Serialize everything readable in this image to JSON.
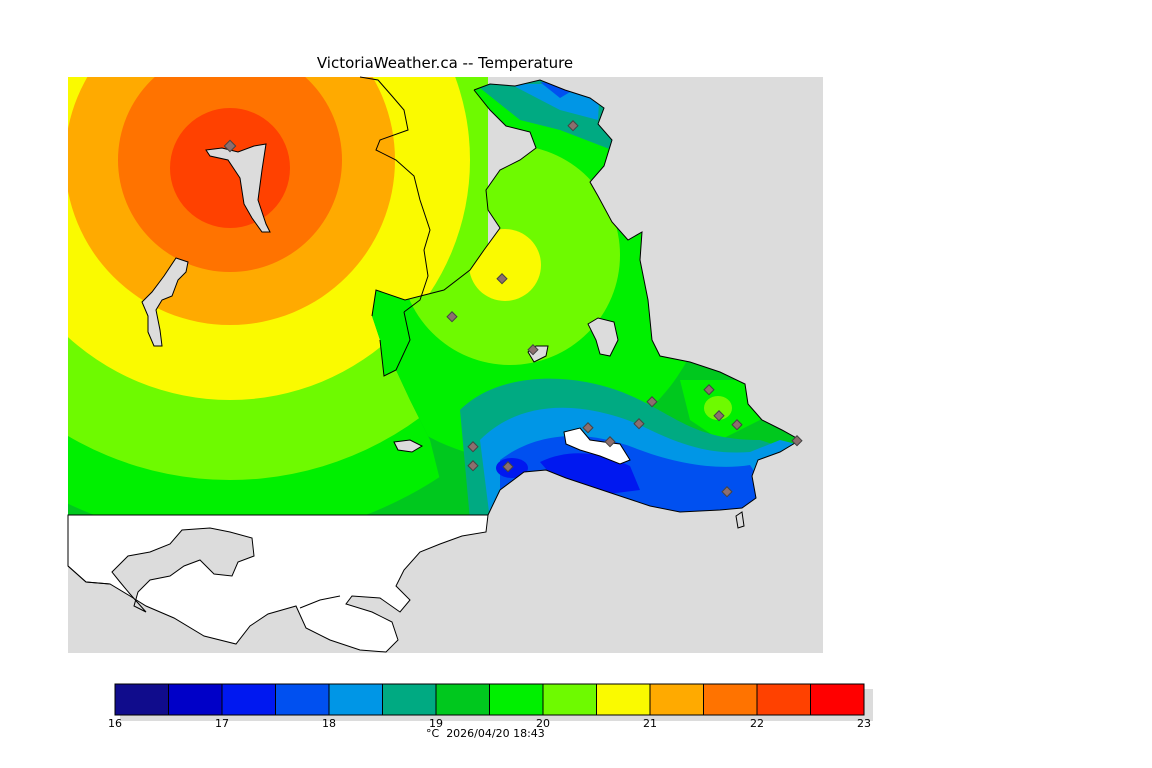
{
  "title": "VictoriaWeather.ca -- Temperature",
  "units": "°C",
  "timestamp": "2026/04/20 18:43",
  "colors": {
    "land_outside": "#dcdcdc",
    "water": "#ffffff",
    "coast": "#000000",
    "station": "#8c6e6e"
  },
  "legend": {
    "tick_labels": [
      "16",
      "17",
      "18",
      "19",
      "20",
      "21",
      "22",
      "23"
    ],
    "bins": [
      {
        "from": 16.0,
        "to": 16.5,
        "color": "#100c8c"
      },
      {
        "from": 16.5,
        "to": 17.0,
        "color": "#0000c8"
      },
      {
        "from": 17.0,
        "to": 17.5,
        "color": "#0018f0"
      },
      {
        "from": 17.5,
        "to": 18.0,
        "color": "#0050f0"
      },
      {
        "from": 18.0,
        "to": 18.5,
        "color": "#0096e6"
      },
      {
        "from": 18.5,
        "to": 19.0,
        "color": "#00aa82"
      },
      {
        "from": 19.0,
        "to": 19.5,
        "color": "#00c81e"
      },
      {
        "from": 19.5,
        "to": 20.0,
        "color": "#00f000"
      },
      {
        "from": 20.0,
        "to": 20.5,
        "color": "#6efa00"
      },
      {
        "from": 20.5,
        "to": 21.0,
        "color": "#fafa00"
      },
      {
        "from": 21.0,
        "to": 21.5,
        "color": "#ffaa00"
      },
      {
        "from": 21.5,
        "to": 22.0,
        "color": "#ff7300"
      },
      {
        "from": 22.0,
        "to": 22.5,
        "color": "#ff4100"
      },
      {
        "from": 22.5,
        "to": 23.0,
        "color": "#ff0000"
      }
    ]
  }
}
